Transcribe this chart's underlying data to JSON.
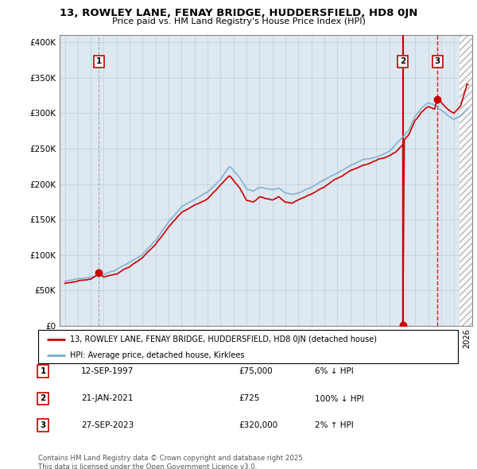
{
  "title": "13, ROWLEY LANE, FENAY BRIDGE, HUDDERSFIELD, HD8 0JN",
  "subtitle": "Price paid vs. HM Land Registry's House Price Index (HPI)",
  "legend_line1": "13, ROWLEY LANE, FENAY BRIDGE, HUDDERSFIELD, HD8 0JN (detached house)",
  "legend_line2": "HPI: Average price, detached house, Kirklees",
  "footer": "Contains HM Land Registry data © Crown copyright and database right 2025.\nThis data is licensed under the Open Government Licence v3.0.",
  "sales": [
    {
      "label": "1",
      "date": "12-SEP-1997",
      "price": "£75,000",
      "note": "6% ↓ HPI",
      "year": 1997.62,
      "value": 75000
    },
    {
      "label": "2",
      "date": "21-JAN-2021",
      "price": "£725",
      "note": "100% ↓ HPI",
      "year": 2021.05,
      "value": 725
    },
    {
      "label": "3",
      "date": "27-SEP-2023",
      "price": "£320,000",
      "note": "2% ↑ HPI",
      "year": 2023.73,
      "value": 320000
    }
  ],
  "red": "#cc0000",
  "blue": "#7aadcf",
  "bg_color": "#dde8f0",
  "grid_color": "#c0ccd8",
  "ylim": [
    0,
    410000
  ],
  "xlim": [
    1994.6,
    2026.4
  ],
  "yticks": [
    0,
    50000,
    100000,
    150000,
    200000,
    250000,
    300000,
    350000,
    400000
  ],
  "xticks": [
    1995,
    1996,
    1997,
    1998,
    1999,
    2000,
    2001,
    2002,
    2003,
    2004,
    2005,
    2006,
    2007,
    2008,
    2009,
    2010,
    2011,
    2012,
    2013,
    2014,
    2015,
    2016,
    2017,
    2018,
    2019,
    2020,
    2021,
    2022,
    2023,
    2024,
    2025,
    2026
  ],
  "hatch_start": 2025.4
}
